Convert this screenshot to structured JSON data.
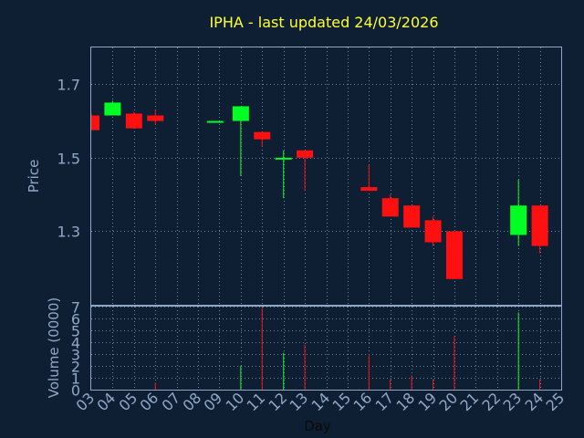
{
  "chart_data": {
    "type": "candlestick",
    "title": "IPHA - last updated 24/03/2026",
    "xlabel": "Day",
    "colors": {
      "background": "#0f1f33",
      "up": "#00ff22",
      "down": "#ff1010",
      "text": "#8fa8c8",
      "title": "#ffff33"
    },
    "x_ticks": [
      "03",
      "04",
      "05",
      "06",
      "07",
      "08",
      "09",
      "10",
      "11",
      "12",
      "13",
      "14",
      "15",
      "16",
      "17",
      "18",
      "19",
      "20",
      "21",
      "22",
      "23",
      "24",
      "25"
    ],
    "price_panel": {
      "ylabel": "Price",
      "ylim": [
        1.1,
        1.8
      ],
      "yticks": [
        "1.3",
        "1.5",
        "1.7"
      ],
      "grid": true
    },
    "volume_panel": {
      "ylabel": "Volume (0000)",
      "ylim": [
        0,
        7
      ],
      "yticks": [
        "0",
        "1",
        "2",
        "3",
        "4",
        "5",
        "6",
        "7"
      ],
      "grid": true
    },
    "candles": [
      {
        "x": 3.0,
        "open": 1.615,
        "close": 1.575,
        "high": 1.62,
        "low": 1.575,
        "volume": 0.0
      },
      {
        "x": 4.0,
        "open": 1.615,
        "close": 1.65,
        "high": 1.655,
        "low": 1.615,
        "volume": 0.0
      },
      {
        "x": 5.0,
        "open": 1.62,
        "close": 1.58,
        "high": 1.625,
        "low": 1.58,
        "volume": 0.0
      },
      {
        "x": 6.0,
        "open": 1.615,
        "close": 1.6,
        "high": 1.63,
        "low": 1.59,
        "volume": 0.6
      },
      {
        "x": 8.8,
        "open": 1.6,
        "close": 1.6,
        "high": 1.6,
        "low": 1.6,
        "volume": 0.0
      },
      {
        "x": 10.0,
        "open": 1.6,
        "close": 1.64,
        "high": 1.64,
        "low": 1.45,
        "volume": 2.0
      },
      {
        "x": 11.0,
        "open": 1.57,
        "close": 1.55,
        "high": 1.57,
        "low": 1.53,
        "volume": 6.9
      },
      {
        "x": 12.0,
        "open": 1.5,
        "close": 1.5,
        "high": 1.52,
        "low": 1.39,
        "volume": 3.1
      },
      {
        "x": 13.0,
        "open": 1.52,
        "close": 1.5,
        "high": 1.52,
        "low": 1.41,
        "volume": 3.8
      },
      {
        "x": 16.0,
        "open": 1.42,
        "close": 1.41,
        "high": 1.48,
        "low": 1.41,
        "volume": 2.9
      },
      {
        "x": 17.0,
        "open": 1.39,
        "close": 1.34,
        "high": 1.4,
        "low": 1.34,
        "volume": 0.9
      },
      {
        "x": 18.0,
        "open": 1.37,
        "close": 1.31,
        "high": 1.37,
        "low": 1.31,
        "volume": 1.2
      },
      {
        "x": 19.0,
        "open": 1.33,
        "close": 1.27,
        "high": 1.34,
        "low": 1.26,
        "volume": 0.9
      },
      {
        "x": 20.0,
        "open": 1.3,
        "close": 1.17,
        "high": 1.3,
        "low": 1.17,
        "volume": 4.5
      },
      {
        "x": 23.0,
        "open": 1.29,
        "close": 1.37,
        "high": 1.44,
        "low": 1.26,
        "volume": 6.5
      },
      {
        "x": 24.0,
        "open": 1.37,
        "close": 1.26,
        "high": 1.37,
        "low": 1.24,
        "volume": 0.9
      }
    ]
  }
}
